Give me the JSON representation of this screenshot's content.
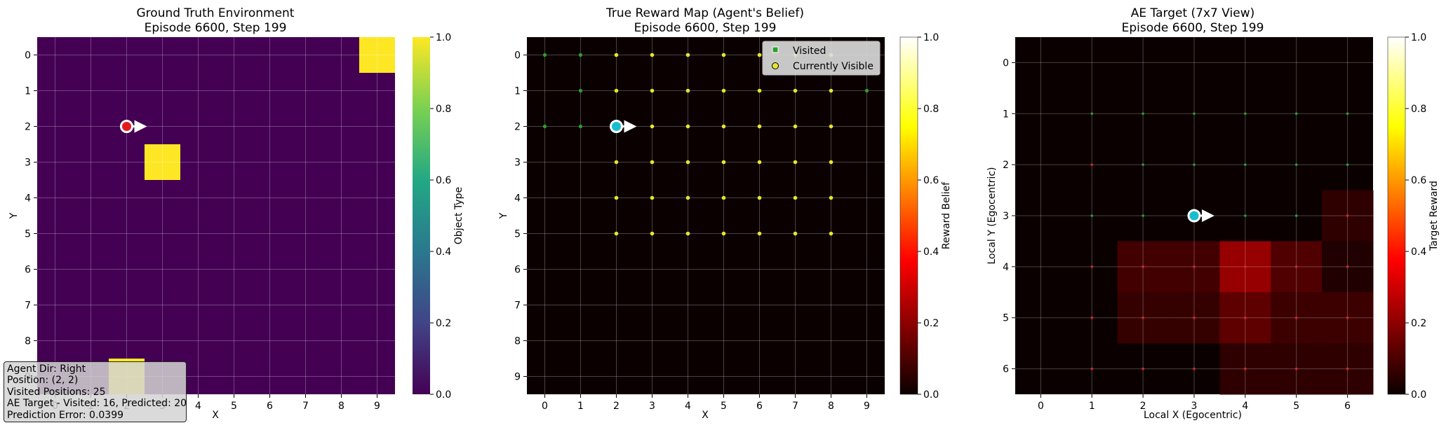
{
  "panels": {
    "left": {
      "title_line1": "Ground Truth Environment",
      "title_line2": "Episode 6600, Step 199",
      "xlabel": "X",
      "ylabel": "Y",
      "colorbar_label": "Object Type"
    },
    "middle": {
      "title_line1": "True Reward Map (Agent's Belief)",
      "title_line2": "Episode 6600, Step 199",
      "xlabel": "X",
      "ylabel": "Y",
      "colorbar_label": "Reward Belief",
      "legend": {
        "visited": "Visited",
        "visible": "Currently Visible"
      }
    },
    "right": {
      "title_line1": "AE Target (7x7 View)",
      "title_line2": "Episode 6600, Step 199",
      "xlabel": "Local X (Egocentric)",
      "ylabel": "Local Y (Egocentric)",
      "colorbar_label": "Target Reward"
    }
  },
  "info_box": {
    "line1": "Agent Dir: Right",
    "line2": "Position: (2, 2)",
    "line3": "Visited Positions: 25",
    "line4": "AE Target - Visited: 16, Predicted: 20",
    "line5": "Prediction Error: 0.0399"
  },
  "colorbar_ticks": [
    "0.0",
    "0.2",
    "0.4",
    "0.6",
    "0.8",
    "1.0"
  ],
  "colors": {
    "viridis_low": "#440154",
    "viridis_high": "#fde725",
    "agent_left": "#e31a1c",
    "agent_mid": "#17becf",
    "visited_marker": "#2ca02c",
    "visible_marker": "#e6e62e"
  },
  "chart_data": [
    {
      "type": "heatmap",
      "title": "Ground Truth Environment\nEpisode 6600, Step 199",
      "xlabel": "X",
      "ylabel": "Y",
      "x_ticks": [
        0,
        1,
        2,
        3,
        4,
        5,
        6,
        7,
        8,
        9
      ],
      "y_ticks": [
        0,
        1,
        2,
        3,
        4,
        5,
        6,
        7,
        8,
        9
      ],
      "grid": true,
      "colorscale": "viridis",
      "value_range": [
        0,
        1
      ],
      "cells_value_1": [
        [
          9,
          0
        ],
        [
          3,
          3
        ],
        [
          2,
          9
        ]
      ],
      "background_value": 0,
      "agent": {
        "x": 2,
        "y": 2,
        "direction": "Right"
      }
    },
    {
      "type": "heatmap",
      "title": "True Reward Map (Agent's Belief)\nEpisode 6600, Step 199",
      "xlabel": "X",
      "ylabel": "Y",
      "x_ticks": [
        0,
        1,
        2,
        3,
        4,
        5,
        6,
        7,
        8,
        9
      ],
      "y_ticks": [
        0,
        1,
        2,
        3,
        4,
        5,
        6,
        7,
        8,
        9
      ],
      "grid": true,
      "colorscale": "hot",
      "value_range": [
        0,
        1
      ],
      "background_value": 0,
      "legend_position": "upper-right",
      "visited": [
        [
          0,
          0
        ],
        [
          1,
          0
        ],
        [
          1,
          1
        ],
        [
          0,
          2
        ],
        [
          1,
          2
        ],
        [
          9,
          1
        ]
      ],
      "currently_visible": [
        [
          2,
          0
        ],
        [
          3,
          0
        ],
        [
          4,
          0
        ],
        [
          5,
          0
        ],
        [
          6,
          0
        ],
        [
          7,
          0
        ],
        [
          8,
          0
        ],
        [
          2,
          1
        ],
        [
          3,
          1
        ],
        [
          4,
          1
        ],
        [
          5,
          1
        ],
        [
          6,
          1
        ],
        [
          7,
          1
        ],
        [
          8,
          1
        ],
        [
          3,
          2
        ],
        [
          4,
          2
        ],
        [
          5,
          2
        ],
        [
          6,
          2
        ],
        [
          7,
          2
        ],
        [
          8,
          2
        ],
        [
          2,
          3
        ],
        [
          3,
          3
        ],
        [
          4,
          3
        ],
        [
          5,
          3
        ],
        [
          6,
          3
        ],
        [
          7,
          3
        ],
        [
          8,
          3
        ],
        [
          2,
          4
        ],
        [
          3,
          4
        ],
        [
          4,
          4
        ],
        [
          5,
          4
        ],
        [
          6,
          4
        ],
        [
          7,
          4
        ],
        [
          8,
          4
        ],
        [
          2,
          5
        ],
        [
          3,
          5
        ],
        [
          4,
          5
        ],
        [
          5,
          5
        ],
        [
          6,
          5
        ],
        [
          7,
          5
        ],
        [
          8,
          5
        ]
      ],
      "agent": {
        "x": 2,
        "y": 2,
        "direction": "Right"
      }
    },
    {
      "type": "heatmap",
      "title": "AE Target (7x7 View)\nEpisode 6600, Step 199",
      "xlabel": "Local X (Egocentric)",
      "ylabel": "Local Y (Egocentric)",
      "x_ticks": [
        0,
        1,
        2,
        3,
        4,
        5,
        6
      ],
      "y_ticks": [
        0,
        1,
        2,
        3,
        4,
        5,
        6
      ],
      "grid": true,
      "colorscale": "hot",
      "value_range": [
        0,
        1
      ],
      "values": [
        [
          0,
          0,
          0,
          0,
          0,
          0,
          0
        ],
        [
          0,
          0,
          0,
          0,
          0,
          0,
          0
        ],
        [
          0,
          0,
          0,
          0,
          0,
          0,
          0
        ],
        [
          0,
          0,
          0,
          0,
          0,
          0,
          0.05
        ],
        [
          0,
          0,
          0.08,
          0.08,
          0.2,
          0.1,
          0.03
        ],
        [
          0,
          0,
          0.06,
          0.06,
          0.12,
          0.07,
          0.07
        ],
        [
          0,
          0,
          0,
          0,
          0.05,
          0.05,
          0.05
        ]
      ],
      "green_dots": [
        [
          1,
          1
        ],
        [
          2,
          1
        ],
        [
          3,
          1
        ],
        [
          4,
          1
        ],
        [
          5,
          1
        ],
        [
          6,
          1
        ],
        [
          2,
          2
        ],
        [
          3,
          2
        ],
        [
          4,
          2
        ],
        [
          5,
          2
        ],
        [
          6,
          2
        ],
        [
          1,
          3
        ],
        [
          2,
          3
        ],
        [
          4,
          3
        ],
        [
          5,
          3
        ]
      ],
      "red_dots": [
        [
          1,
          2
        ],
        [
          6,
          3
        ],
        [
          1,
          4
        ],
        [
          2,
          4
        ],
        [
          3,
          4
        ],
        [
          4,
          4
        ],
        [
          5,
          4
        ],
        [
          6,
          4
        ],
        [
          1,
          5
        ],
        [
          2,
          5
        ],
        [
          3,
          5
        ],
        [
          4,
          5
        ],
        [
          5,
          5
        ],
        [
          6,
          5
        ],
        [
          1,
          6
        ],
        [
          2,
          6
        ],
        [
          3,
          6
        ],
        [
          4,
          6
        ],
        [
          5,
          6
        ],
        [
          6,
          6
        ]
      ],
      "agent": {
        "x": 3,
        "y": 3,
        "direction": "Right"
      }
    }
  ]
}
